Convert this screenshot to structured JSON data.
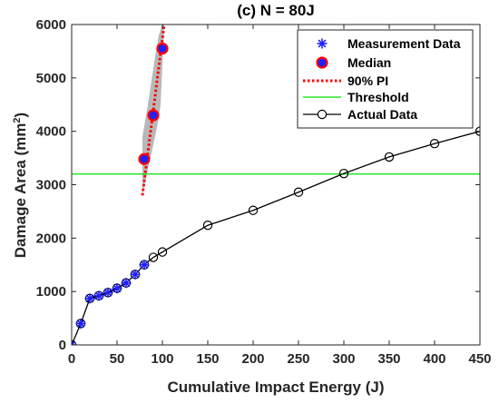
{
  "chart_data": {
    "type": "line",
    "title": "(c) N = 80J",
    "xlabel": "Cumulative Impact Energy (J)",
    "ylabel_main": "Damage Area (mm",
    "ylabel_sup": "2",
    "ylabel_end": ")",
    "xlim": [
      0,
      450
    ],
    "ylim": [
      0,
      6000
    ],
    "xticks": [
      0,
      50,
      100,
      150,
      200,
      250,
      300,
      350,
      400,
      450
    ],
    "yticks": [
      0,
      1000,
      2000,
      3000,
      4000,
      5000,
      6000
    ],
    "grid": false,
    "legend_position": "top-right",
    "legend": [
      {
        "key": "measurement",
        "label": "Measurement Data"
      },
      {
        "key": "median",
        "label": "Median"
      },
      {
        "key": "pi",
        "label": "90% PI"
      },
      {
        "key": "threshold",
        "label": "Threshold"
      },
      {
        "key": "actual",
        "label": "Actual Data"
      }
    ],
    "measurement": {
      "x": [
        0,
        10,
        20,
        30,
        40,
        50,
        60,
        70,
        80
      ],
      "y": [
        0,
        400,
        870,
        920,
        980,
        1060,
        1160,
        1320,
        1500
      ],
      "color": "#1f1fff"
    },
    "median": {
      "x": [
        80,
        90,
        100
      ],
      "y": [
        3480,
        4300,
        5550
      ],
      "fill": "#1f1fff",
      "edge": "#ff0000"
    },
    "pi": {
      "upper_x": [
        78,
        80,
        84,
        88,
        92,
        96,
        100,
        102
      ],
      "upper_y": [
        3900,
        4100,
        4500,
        4950,
        5400,
        5800,
        6000,
        6000
      ],
      "lower_x": [
        98,
        96,
        92,
        88,
        84,
        80,
        78
      ],
      "lower_y": [
        4500,
        4250,
        3900,
        3600,
        3300,
        2950,
        2800
      ],
      "line_x": [
        78,
        102
      ],
      "line_y": [
        2800,
        6000
      ],
      "band_color": "#b0b0b0",
      "line_color": "#ff0000"
    },
    "threshold": {
      "y": 3200,
      "color": "#00e000"
    },
    "actual": {
      "x": [
        0,
        10,
        20,
        30,
        40,
        50,
        60,
        70,
        80,
        90,
        100,
        150,
        200,
        250,
        300,
        350,
        400,
        450
      ],
      "y": [
        0,
        400,
        870,
        920,
        980,
        1060,
        1160,
        1320,
        1500,
        1640,
        1740,
        2240,
        2520,
        2860,
        3210,
        3520,
        3770,
        4000
      ],
      "color": "#000000"
    }
  }
}
